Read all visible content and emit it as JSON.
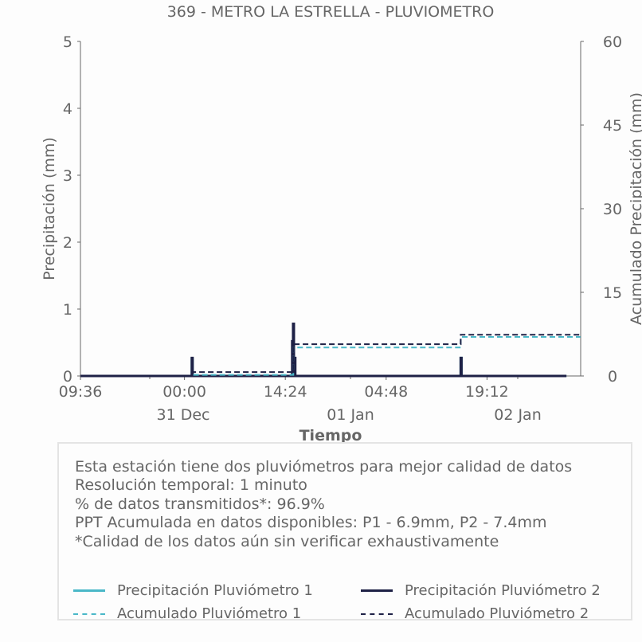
{
  "chart_data": {
    "type": "line",
    "title": "369 - METRO LA ESTRELLA - PLUVIOMETRO",
    "xlabel": "Tiempo",
    "ylabel": "Precipitación (mm)",
    "ylabel_right": "Acumulado Precipitación (mm)",
    "xlim": [
      "30 Dec 09:36",
      "02 Jan 09:00"
    ],
    "ylim": [
      0,
      5
    ],
    "ylim_right": [
      0,
      60
    ],
    "yticks": [
      "0",
      "1",
      "2",
      "3",
      "4",
      "5"
    ],
    "yticks_right": [
      "0",
      "15",
      "30",
      "45",
      "60"
    ],
    "xticks": [
      "09:36",
      "00:00",
      "14:24",
      "04:48",
      "19:12"
    ],
    "xticks_date": [
      "31 Dec",
      "01 Jan",
      "02 Jan"
    ],
    "grid": false,
    "series": [
      {
        "name": "Precipitación Pluviómetro 1",
        "color": "#4ab8c8",
        "style": "solid",
        "axis": "left",
        "points": [
          [
            "30 Dec 09:36",
            0
          ],
          [
            "31 Dec 01:30",
            0.25
          ],
          [
            "31 Dec 15:55",
            0.5
          ],
          [
            "31 Dec 16:00",
            0.25
          ],
          [
            "01 Jan 15:54",
            0.27
          ],
          [
            "02 Jan 07:00",
            0
          ]
        ]
      },
      {
        "name": "Precipitación Pluviómetro 2",
        "color": "#1e2146",
        "style": "solid",
        "axis": "left",
        "points": [
          [
            "30 Dec 09:36",
            0
          ],
          [
            "31 Dec 01:30",
            0.27
          ],
          [
            "31 Dec 15:50",
            0.52
          ],
          [
            "31 Dec 15:58",
            0.78
          ],
          [
            "31 Dec 16:10",
            0.27
          ],
          [
            "01 Jan 15:54",
            0.27
          ],
          [
            "02 Jan 07:00",
            0
          ]
        ]
      },
      {
        "name": "Acumulado Pluviómetro 1",
        "color": "#4ab8c8",
        "style": "dashed",
        "axis": "right",
        "points": [
          [
            "30 Dec 09:36",
            0
          ],
          [
            "31 Dec 01:30",
            0.2
          ],
          [
            "31 Dec 16:00",
            5.1
          ],
          [
            "01 Jan 15:54",
            7.0
          ],
          [
            "02 Jan 09:00",
            7.0
          ]
        ]
      },
      {
        "name": "Acumulado Pluviómetro 2",
        "color": "#1e2146",
        "style": "dashed",
        "axis": "right",
        "points": [
          [
            "30 Dec 09:36",
            0
          ],
          [
            "31 Dec 01:30",
            0.7
          ],
          [
            "31 Dec 16:00",
            5.7
          ],
          [
            "01 Jan 15:54",
            7.4
          ],
          [
            "02 Jan 09:00",
            7.4
          ]
        ]
      }
    ]
  },
  "info": {
    "lines": [
      "Esta estación tiene dos pluviómetros para mejor calidad de datos",
      "Resolución temporal: 1 minuto",
      "% de datos transmitidos*: 96.9%",
      "PPT Acumulada en datos disponibles: P1 - 6.9mm, P2 - 7.4mm",
      "*Calidad de los datos aún sin verificar exhaustivamente"
    ]
  }
}
